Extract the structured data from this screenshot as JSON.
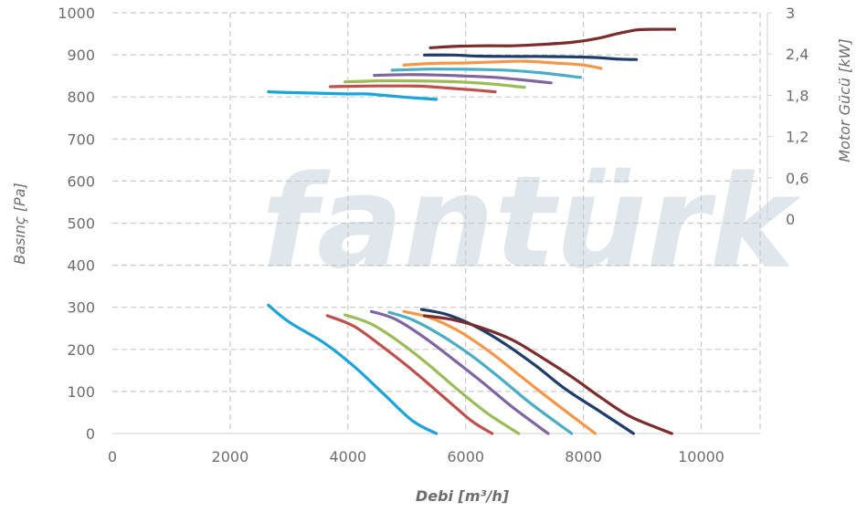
{
  "chart_data": {
    "type": "line",
    "watermark": "fantürk",
    "xlabel": "Debi [m³/h]",
    "ylabel": "Basınç [Pa]",
    "y2label": "Motor Gücü [kW]",
    "xlim": [
      0,
      11000
    ],
    "ylim": [
      0,
      1000
    ],
    "y2lim": [
      0,
      3
    ],
    "y2_visible_range": [
      0,
      3
    ],
    "grid": true,
    "x_ticks": [
      "0",
      "2000",
      "4000",
      "6000",
      "8000",
      "10000"
    ],
    "y_ticks": [
      "0",
      "100",
      "200",
      "300",
      "400",
      "500",
      "600",
      "700",
      "800",
      "900",
      "1000"
    ],
    "y2_ticks": [
      "0",
      "0,6",
      "1,2",
      "1,8",
      "2,4",
      "3"
    ],
    "colors": [
      "#1aa3dc",
      "#c0504d",
      "#9bbb59",
      "#8064a2",
      "#4bacc6",
      "#f79646",
      "#1f3d6b",
      "#7b2c2c"
    ],
    "pressure_series": [
      {
        "color": "#1aa3dc",
        "points": [
          [
            2650,
            305
          ],
          [
            3000,
            265
          ],
          [
            3600,
            215
          ],
          [
            4100,
            160
          ],
          [
            4600,
            95
          ],
          [
            5100,
            30
          ],
          [
            5500,
            0
          ]
        ]
      },
      {
        "color": "#c0504d",
        "points": [
          [
            3650,
            280
          ],
          [
            4100,
            255
          ],
          [
            4600,
            205
          ],
          [
            5100,
            150
          ],
          [
            5600,
            90
          ],
          [
            6100,
            30
          ],
          [
            6450,
            0
          ]
        ]
      },
      {
        "color": "#9bbb59",
        "points": [
          [
            3950,
            282
          ],
          [
            4400,
            260
          ],
          [
            4900,
            215
          ],
          [
            5400,
            160
          ],
          [
            5900,
            100
          ],
          [
            6400,
            45
          ],
          [
            6900,
            0
          ]
        ]
      },
      {
        "color": "#8064a2",
        "points": [
          [
            4400,
            290
          ],
          [
            4800,
            272
          ],
          [
            5300,
            228
          ],
          [
            5800,
            175
          ],
          [
            6300,
            120
          ],
          [
            6800,
            62
          ],
          [
            7400,
            0
          ]
        ]
      },
      {
        "color": "#4bacc6",
        "points": [
          [
            4700,
            288
          ],
          [
            5100,
            270
          ],
          [
            5600,
            232
          ],
          [
            6100,
            185
          ],
          [
            6600,
            130
          ],
          [
            7100,
            72
          ],
          [
            7800,
            0
          ]
        ]
      },
      {
        "color": "#f79646",
        "points": [
          [
            4950,
            290
          ],
          [
            5400,
            275
          ],
          [
            5900,
            242
          ],
          [
            6400,
            195
          ],
          [
            6900,
            140
          ],
          [
            7400,
            85
          ],
          [
            8200,
            0
          ]
        ]
      },
      {
        "color": "#1f3d6b",
        "points": [
          [
            5250,
            295
          ],
          [
            5700,
            282
          ],
          [
            6200,
            252
          ],
          [
            6700,
            210
          ],
          [
            7200,
            160
          ],
          [
            7700,
            105
          ],
          [
            8250,
            55
          ],
          [
            8850,
            0
          ]
        ]
      },
      {
        "color": "#7b2c2c",
        "points": [
          [
            5300,
            280
          ],
          [
            5800,
            270
          ],
          [
            6300,
            250
          ],
          [
            6800,
            222
          ],
          [
            7300,
            180
          ],
          [
            7800,
            135
          ],
          [
            8300,
            85
          ],
          [
            8800,
            40
          ],
          [
            9500,
            0
          ]
        ]
      }
    ],
    "power_series": [
      {
        "color": "#1aa3dc",
        "points": [
          [
            2650,
            1.85
          ],
          [
            3000,
            1.84
          ],
          [
            3500,
            1.83
          ],
          [
            4000,
            1.82
          ],
          [
            4300,
            1.82
          ],
          [
            4600,
            1.8
          ],
          [
            5000,
            1.77
          ],
          [
            5500,
            1.74
          ]
        ]
      },
      {
        "color": "#c0504d",
        "points": [
          [
            3700,
            1.925
          ],
          [
            4000,
            1.93
          ],
          [
            4500,
            1.935
          ],
          [
            5000,
            1.935
          ],
          [
            5300,
            1.93
          ],
          [
            5700,
            1.905
          ],
          [
            6100,
            1.88
          ],
          [
            6500,
            1.85
          ]
        ]
      },
      {
        "color": "#9bbb59",
        "points": [
          [
            3950,
            1.995
          ],
          [
            4500,
            2.01
          ],
          [
            5000,
            2.01
          ],
          [
            5500,
            2.005
          ],
          [
            6000,
            1.99
          ],
          [
            6500,
            1.96
          ],
          [
            7000,
            1.915
          ]
        ]
      },
      {
        "color": "#8064a2",
        "points": [
          [
            4450,
            2.09
          ],
          [
            5000,
            2.1
          ],
          [
            5500,
            2.095
          ],
          [
            6000,
            2.08
          ],
          [
            6500,
            2.06
          ],
          [
            7000,
            2.02
          ],
          [
            7450,
            1.98
          ]
        ]
      },
      {
        "color": "#4bacc6",
        "points": [
          [
            4750,
            2.165
          ],
          [
            5300,
            2.18
          ],
          [
            5800,
            2.18
          ],
          [
            6300,
            2.175
          ],
          [
            6800,
            2.16
          ],
          [
            7300,
            2.125
          ],
          [
            7950,
            2.06
          ]
        ]
      },
      {
        "color": "#f79646",
        "points": [
          [
            4950,
            2.24
          ],
          [
            5500,
            2.265
          ],
          [
            6000,
            2.27
          ],
          [
            6500,
            2.285
          ],
          [
            7000,
            2.295
          ],
          [
            7500,
            2.27
          ],
          [
            8000,
            2.24
          ],
          [
            8300,
            2.19
          ]
        ]
      },
      {
        "color": "#1f3d6b",
        "points": [
          [
            5300,
            2.385
          ],
          [
            5800,
            2.385
          ],
          [
            6200,
            2.37
          ],
          [
            6700,
            2.365
          ],
          [
            7200,
            2.365
          ],
          [
            7700,
            2.36
          ],
          [
            8200,
            2.35
          ],
          [
            8600,
            2.325
          ],
          [
            8900,
            2.32
          ]
        ]
      },
      {
        "color": "#7b2c2c",
        "points": [
          [
            5400,
            2.49
          ],
          [
            5800,
            2.51
          ],
          [
            6300,
            2.52
          ],
          [
            6800,
            2.52
          ],
          [
            7300,
            2.54
          ],
          [
            7800,
            2.57
          ],
          [
            8200,
            2.62
          ],
          [
            8600,
            2.7
          ],
          [
            8900,
            2.75
          ],
          [
            9200,
            2.76
          ],
          [
            9550,
            2.76
          ]
        ]
      }
    ]
  }
}
